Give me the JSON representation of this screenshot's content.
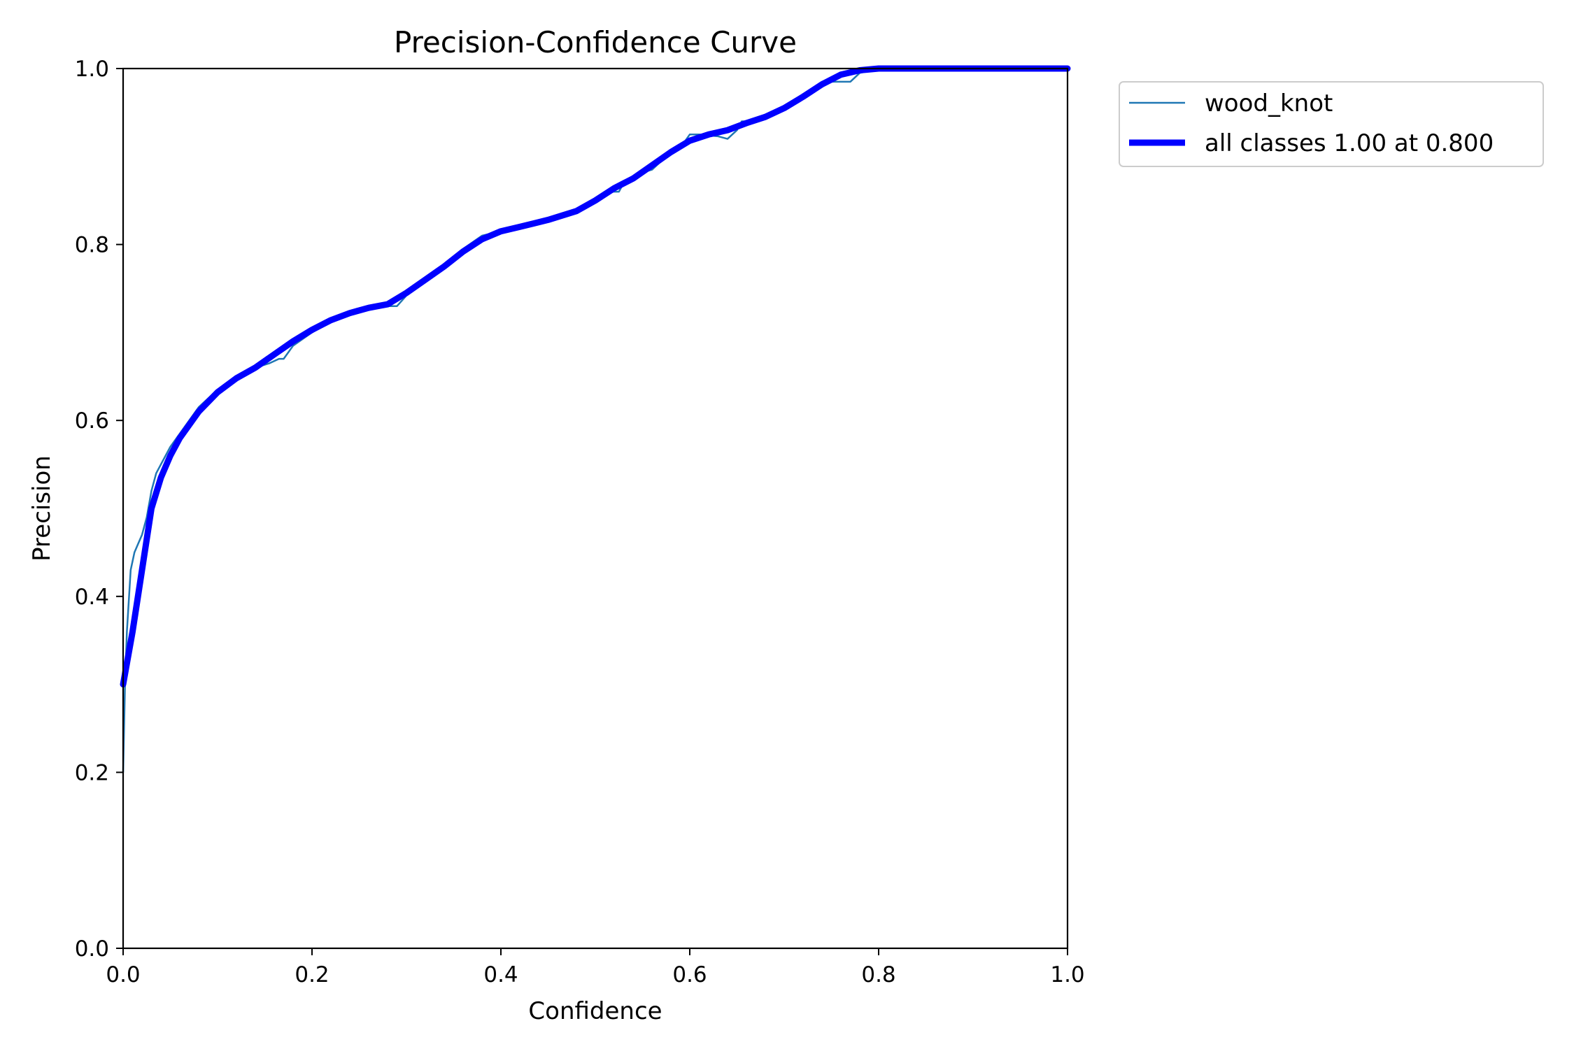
{
  "chart_data": {
    "type": "line",
    "title": "Precision-Confidence Curve",
    "xlabel": "Confidence",
    "ylabel": "Precision",
    "xlim": [
      0.0,
      1.0
    ],
    "ylim": [
      0.0,
      1.0
    ],
    "x_ticks": [
      "0.0",
      "0.2",
      "0.4",
      "0.6",
      "0.8",
      "1.0"
    ],
    "y_ticks": [
      "0.0",
      "0.2",
      "0.4",
      "0.6",
      "0.8",
      "1.0"
    ],
    "grid": false,
    "legend_position": "outside top-right",
    "series": [
      {
        "name": "wood_knot",
        "color": "#1f77b4",
        "x": [
          0.0,
          0.002,
          0.004,
          0.008,
          0.012,
          0.016,
          0.02,
          0.025,
          0.03,
          0.035,
          0.04,
          0.05,
          0.06,
          0.07,
          0.08,
          0.1,
          0.12,
          0.14,
          0.155,
          0.165,
          0.17,
          0.18,
          0.2,
          0.22,
          0.24,
          0.26,
          0.275,
          0.28,
          0.29,
          0.3,
          0.32,
          0.34,
          0.36,
          0.38,
          0.4,
          0.42,
          0.45,
          0.48,
          0.5,
          0.515,
          0.525,
          0.53,
          0.55,
          0.56,
          0.57,
          0.59,
          0.6,
          0.61,
          0.63,
          0.64,
          0.65,
          0.655,
          0.66,
          0.68,
          0.7,
          0.72,
          0.74,
          0.75,
          0.76,
          0.77,
          0.78,
          0.8,
          0.85,
          0.9,
          0.95,
          1.0
        ],
        "y": [
          0.2,
          0.3,
          0.36,
          0.43,
          0.45,
          0.46,
          0.47,
          0.49,
          0.52,
          0.54,
          0.55,
          0.57,
          0.585,
          0.6,
          0.615,
          0.635,
          0.65,
          0.66,
          0.665,
          0.67,
          0.67,
          0.685,
          0.7,
          0.712,
          0.722,
          0.73,
          0.73,
          0.73,
          0.73,
          0.742,
          0.758,
          0.775,
          0.795,
          0.81,
          0.815,
          0.82,
          0.828,
          0.838,
          0.85,
          0.86,
          0.86,
          0.87,
          0.882,
          0.885,
          0.895,
          0.91,
          0.925,
          0.925,
          0.923,
          0.92,
          0.93,
          0.94,
          0.94,
          0.945,
          0.955,
          0.97,
          0.985,
          0.985,
          0.985,
          0.985,
          0.995,
          1.0,
          1.0,
          1.0,
          1.0,
          1.0
        ]
      },
      {
        "name": "all classes 1.00 at 0.800",
        "color": "#0000ff",
        "x": [
          0.0,
          0.01,
          0.02,
          0.03,
          0.04,
          0.05,
          0.06,
          0.08,
          0.1,
          0.12,
          0.14,
          0.16,
          0.18,
          0.2,
          0.22,
          0.24,
          0.26,
          0.28,
          0.3,
          0.32,
          0.34,
          0.36,
          0.38,
          0.4,
          0.42,
          0.45,
          0.48,
          0.5,
          0.52,
          0.54,
          0.56,
          0.58,
          0.6,
          0.62,
          0.64,
          0.66,
          0.68,
          0.7,
          0.72,
          0.74,
          0.76,
          0.78,
          0.8,
          0.85,
          0.9,
          0.95,
          1.0
        ],
        "y": [
          0.3,
          0.36,
          0.43,
          0.5,
          0.535,
          0.56,
          0.58,
          0.61,
          0.632,
          0.648,
          0.66,
          0.675,
          0.69,
          0.703,
          0.714,
          0.722,
          0.728,
          0.732,
          0.745,
          0.76,
          0.775,
          0.792,
          0.806,
          0.815,
          0.82,
          0.828,
          0.838,
          0.85,
          0.864,
          0.875,
          0.89,
          0.905,
          0.918,
          0.925,
          0.93,
          0.938,
          0.945,
          0.955,
          0.968,
          0.982,
          0.993,
          0.998,
          1.0,
          1.0,
          1.0,
          1.0,
          1.0
        ]
      }
    ]
  }
}
